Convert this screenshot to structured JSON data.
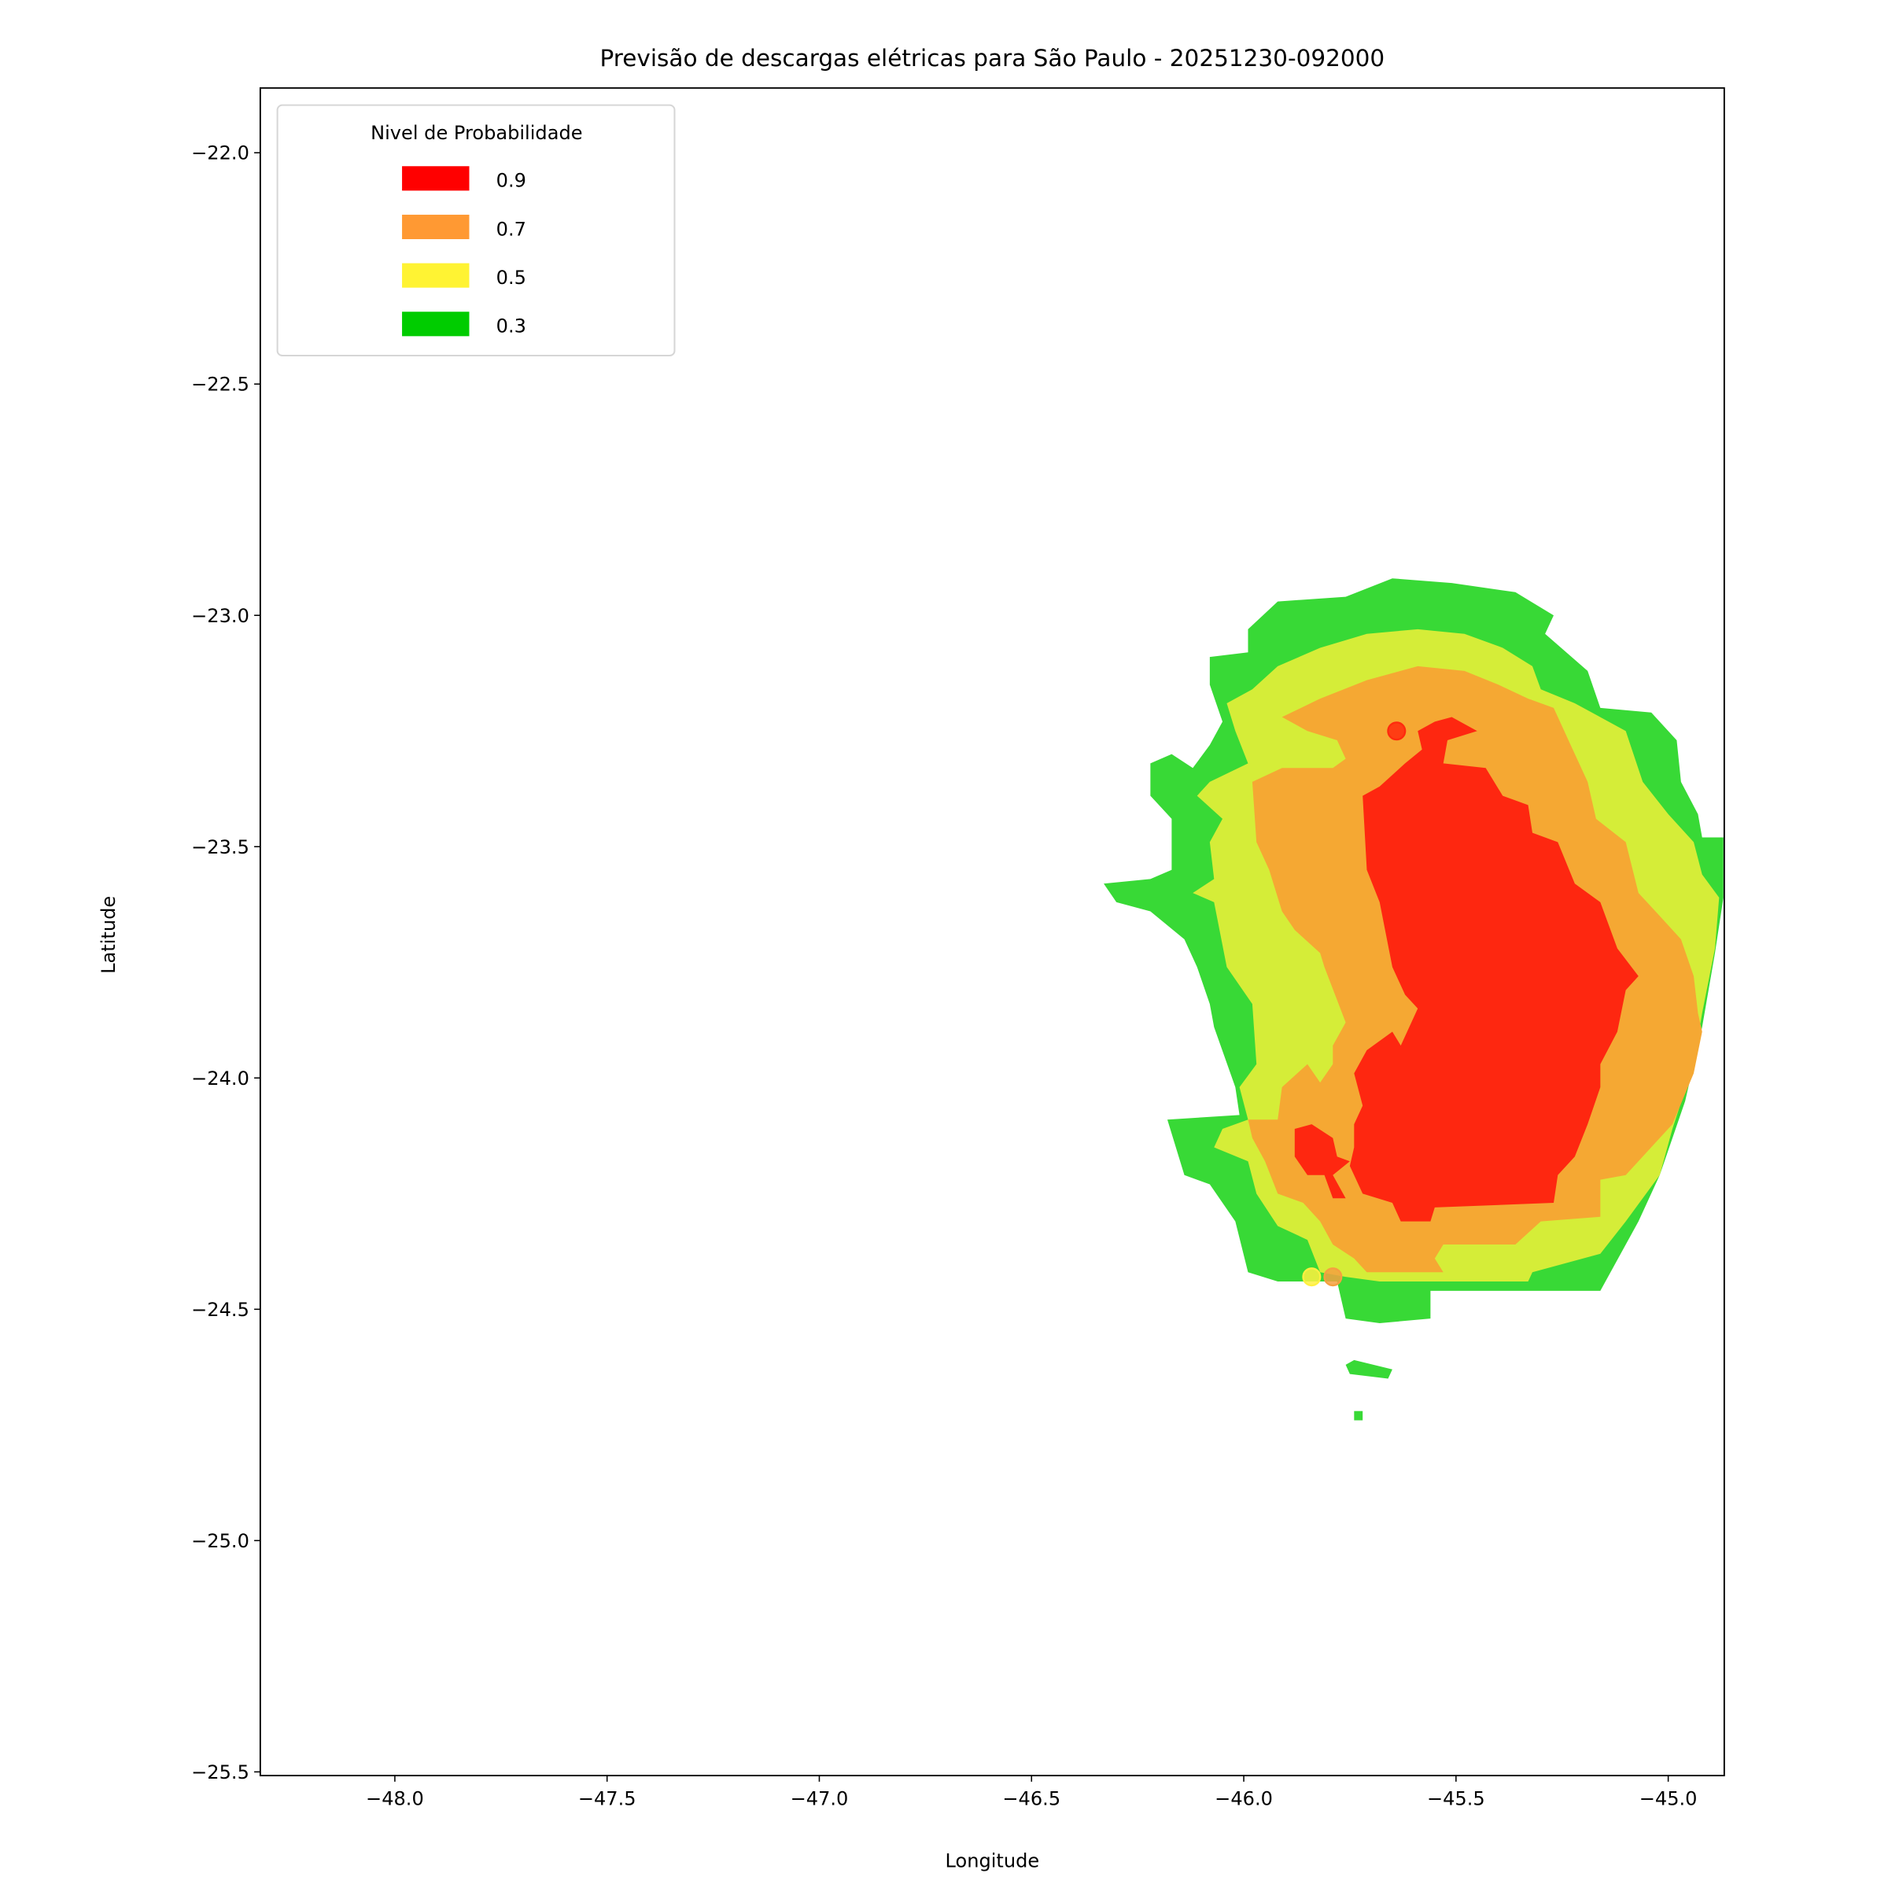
{
  "chart_data": {
    "type": "contour",
    "title": "Previsão de descargas elétricas para São Paulo - 20251230-092000",
    "xlabel": "Longitude",
    "ylabel": "Latitude",
    "xlim": [
      -48.317,
      -44.868
    ],
    "ylim": [
      -25.508,
      -21.86
    ],
    "grid": false,
    "xticks": [
      -48.0,
      -47.5,
      -47.0,
      -46.5,
      -46.0,
      -45.5,
      -45.0
    ],
    "xtick_labels": [
      "−48.0",
      "−47.5",
      "−47.0",
      "−46.5",
      "−46.0",
      "−45.5",
      "−45.0"
    ],
    "yticks": [
      -22.0,
      -22.5,
      -23.0,
      -23.5,
      -24.0,
      -24.5,
      -25.0,
      -25.5
    ],
    "ytick_labels": [
      "−22.0",
      "−22.5",
      "−23.0",
      "−23.5",
      "−24.0",
      "−24.5",
      "−25.0",
      "−25.5"
    ],
    "legend": {
      "title": "Nivel de Probabilidade",
      "placement": "upper-left",
      "entries": [
        {
          "label": "0.9",
          "color": "#ff0000"
        },
        {
          "label": "0.7",
          "color": "#ff9933"
        },
        {
          "label": "0.5",
          "color": "#fff333"
        },
        {
          "label": "0.3",
          "color": "#00cc00"
        }
      ]
    },
    "levels": [
      {
        "level": 0.3,
        "fill": "#38d936",
        "polygons": [
          [
            [
              -45.92,
              -22.97
            ],
            [
              -45.76,
              -22.96
            ],
            [
              -45.65,
              -22.92
            ],
            [
              -45.51,
              -22.93
            ],
            [
              -45.36,
              -22.95
            ],
            [
              -45.27,
              -23.0
            ],
            [
              -45.29,
              -23.04
            ],
            [
              -45.19,
              -23.12
            ],
            [
              -45.16,
              -23.2
            ],
            [
              -45.04,
              -23.21
            ],
            [
              -44.98,
              -23.27
            ],
            [
              -44.97,
              -23.36
            ],
            [
              -44.93,
              -23.43
            ],
            [
              -44.92,
              -23.48
            ],
            [
              -44.87,
              -23.48
            ],
            [
              -44.87,
              -23.61
            ],
            [
              -44.89,
              -23.73
            ],
            [
              -44.92,
              -23.89
            ],
            [
              -44.96,
              -24.05
            ],
            [
              -45.02,
              -24.21
            ],
            [
              -45.07,
              -24.31
            ],
            [
              -45.16,
              -24.46
            ],
            [
              -45.56,
              -24.46
            ],
            [
              -45.56,
              -24.52
            ],
            [
              -45.68,
              -24.53
            ],
            [
              -45.76,
              -24.52
            ],
            [
              -45.78,
              -24.44
            ],
            [
              -45.92,
              -24.44
            ],
            [
              -45.99,
              -24.42
            ],
            [
              -46.02,
              -24.31
            ],
            [
              -46.08,
              -24.23
            ],
            [
              -46.14,
              -24.21
            ],
            [
              -46.18,
              -24.09
            ],
            [
              -46.01,
              -24.08
            ],
            [
              -46.02,
              -24.02
            ],
            [
              -46.07,
              -23.89
            ],
            [
              -46.08,
              -23.84
            ],
            [
              -46.11,
              -23.76
            ],
            [
              -46.14,
              -23.7
            ],
            [
              -46.22,
              -23.64
            ],
            [
              -46.3,
              -23.62
            ],
            [
              -46.33,
              -23.58
            ],
            [
              -46.22,
              -23.57
            ],
            [
              -46.17,
              -23.55
            ],
            [
              -46.17,
              -23.44
            ],
            [
              -46.22,
              -23.39
            ],
            [
              -46.22,
              -23.32
            ],
            [
              -46.17,
              -23.3
            ],
            [
              -46.12,
              -23.33
            ],
            [
              -46.08,
              -23.28
            ],
            [
              -46.05,
              -23.23
            ],
            [
              -46.08,
              -23.15
            ],
            [
              -46.08,
              -23.09
            ],
            [
              -45.99,
              -23.08
            ],
            [
              -45.99,
              -23.03
            ]
          ],
          [
            [
              -45.76,
              -24.62
            ],
            [
              -45.74,
              -24.61
            ],
            [
              -45.65,
              -24.63
            ],
            [
              -45.66,
              -24.65
            ],
            [
              -45.75,
              -24.64
            ]
          ],
          [
            [
              -45.74,
              -24.72
            ],
            [
              -45.72,
              -24.72
            ],
            [
              -45.72,
              -24.74
            ],
            [
              -45.74,
              -24.74
            ]
          ]
        ]
      },
      {
        "level": 0.5,
        "fill": "#d5ed38",
        "polygons": [
          [
            [
              -45.92,
              -23.11
            ],
            [
              -45.82,
              -23.07
            ],
            [
              -45.71,
              -23.04
            ],
            [
              -45.59,
              -23.03
            ],
            [
              -45.48,
              -23.04
            ],
            [
              -45.39,
              -23.07
            ],
            [
              -45.32,
              -23.11
            ],
            [
              -45.3,
              -23.16
            ],
            [
              -45.22,
              -23.19
            ],
            [
              -45.1,
              -23.25
            ],
            [
              -45.06,
              -23.36
            ],
            [
              -45.0,
              -23.43
            ],
            [
              -44.94,
              -23.49
            ],
            [
              -44.92,
              -23.56
            ],
            [
              -44.88,
              -23.61
            ],
            [
              -44.89,
              -23.72
            ],
            [
              -44.92,
              -23.86
            ],
            [
              -44.94,
              -23.97
            ],
            [
              -44.99,
              -24.11
            ],
            [
              -45.02,
              -24.21
            ],
            [
              -45.1,
              -24.31
            ],
            [
              -45.16,
              -24.38
            ],
            [
              -45.32,
              -24.42
            ],
            [
              -45.33,
              -24.44
            ],
            [
              -45.53,
              -24.44
            ],
            [
              -45.68,
              -24.44
            ],
            [
              -45.76,
              -24.43
            ],
            [
              -45.82,
              -24.42
            ],
            [
              -45.85,
              -24.35
            ],
            [
              -45.92,
              -24.32
            ],
            [
              -45.97,
              -24.25
            ],
            [
              -45.99,
              -24.18
            ],
            [
              -46.07,
              -24.15
            ],
            [
              -46.05,
              -24.11
            ],
            [
              -45.99,
              -24.09
            ],
            [
              -46.01,
              -24.02
            ],
            [
              -45.97,
              -23.97
            ],
            [
              -45.98,
              -23.84
            ],
            [
              -46.04,
              -23.76
            ],
            [
              -46.07,
              -23.62
            ],
            [
              -46.12,
              -23.6
            ],
            [
              -46.07,
              -23.57
            ],
            [
              -46.08,
              -23.49
            ],
            [
              -46.05,
              -23.44
            ],
            [
              -46.11,
              -23.39
            ],
            [
              -46.08,
              -23.36
            ],
            [
              -45.99,
              -23.32
            ],
            [
              -46.02,
              -23.25
            ],
            [
              -46.04,
              -23.19
            ],
            [
              -45.98,
              -23.16
            ]
          ]
        ]
      },
      {
        "level": 0.7,
        "fill": "#f5a833",
        "polygons": [
          [
            [
              -45.82,
              -23.18
            ],
            [
              -45.71,
              -23.14
            ],
            [
              -45.59,
              -23.11
            ],
            [
              -45.48,
              -23.12
            ],
            [
              -45.4,
              -23.15
            ],
            [
              -45.33,
              -23.18
            ],
            [
              -45.27,
              -23.2
            ],
            [
              -45.23,
              -23.28
            ],
            [
              -45.19,
              -23.36
            ],
            [
              -45.17,
              -23.44
            ],
            [
              -45.1,
              -23.49
            ],
            [
              -45.07,
              -23.6
            ],
            [
              -45.02,
              -23.65
            ],
            [
              -44.97,
              -23.7
            ],
            [
              -44.94,
              -23.78
            ],
            [
              -44.93,
              -23.86
            ],
            [
              -44.92,
              -23.9
            ],
            [
              -44.94,
              -23.99
            ],
            [
              -44.99,
              -24.1
            ],
            [
              -45.02,
              -24.13
            ],
            [
              -45.1,
              -24.21
            ],
            [
              -45.16,
              -24.22
            ],
            [
              -45.16,
              -24.3
            ],
            [
              -45.3,
              -24.31
            ],
            [
              -45.36,
              -24.36
            ],
            [
              -45.53,
              -24.36
            ],
            [
              -45.55,
              -24.39
            ],
            [
              -45.53,
              -24.42
            ],
            [
              -45.71,
              -24.42
            ],
            [
              -45.74,
              -24.39
            ],
            [
              -45.79,
              -24.36
            ],
            [
              -45.82,
              -24.31
            ],
            [
              -45.86,
              -24.27
            ],
            [
              -45.92,
              -24.25
            ],
            [
              -45.95,
              -24.18
            ],
            [
              -45.98,
              -24.13
            ],
            [
              -45.99,
              -24.09
            ],
            [
              -45.92,
              -24.09
            ],
            [
              -45.91,
              -24.02
            ],
            [
              -45.85,
              -23.97
            ],
            [
              -45.82,
              -24.01
            ],
            [
              -45.79,
              -23.97
            ],
            [
              -45.79,
              -23.93
            ],
            [
              -45.76,
              -23.88
            ],
            [
              -45.81,
              -23.76
            ],
            [
              -45.82,
              -23.73
            ],
            [
              -45.88,
              -23.68
            ],
            [
              -45.91,
              -23.64
            ],
            [
              -45.94,
              -23.55
            ],
            [
              -45.97,
              -23.49
            ],
            [
              -45.98,
              -23.36
            ],
            [
              -45.91,
              -23.33
            ],
            [
              -45.79,
              -23.33
            ],
            [
              -45.76,
              -23.31
            ],
            [
              -45.78,
              -23.27
            ],
            [
              -45.85,
              -23.25
            ],
            [
              -45.91,
              -23.22
            ]
          ]
        ]
      },
      {
        "level": 0.9,
        "fill": "#fe2710",
        "polygons": [
          [
            [
              -45.55,
              -23.23
            ],
            [
              -45.51,
              -23.22
            ],
            [
              -45.45,
              -23.25
            ],
            [
              -45.52,
              -23.27
            ],
            [
              -45.53,
              -23.32
            ],
            [
              -45.43,
              -23.33
            ],
            [
              -45.39,
              -23.39
            ],
            [
              -45.33,
              -23.41
            ],
            [
              -45.32,
              -23.47
            ],
            [
              -45.26,
              -23.49
            ],
            [
              -45.22,
              -23.58
            ],
            [
              -45.16,
              -23.62
            ],
            [
              -45.12,
              -23.72
            ],
            [
              -45.07,
              -23.78
            ],
            [
              -45.1,
              -23.81
            ],
            [
              -45.12,
              -23.9
            ],
            [
              -45.16,
              -23.97
            ],
            [
              -45.16,
              -24.02
            ],
            [
              -45.19,
              -24.1
            ],
            [
              -45.22,
              -24.17
            ],
            [
              -45.26,
              -24.21
            ],
            [
              -45.27,
              -24.27
            ],
            [
              -45.55,
              -24.28
            ],
            [
              -45.56,
              -24.31
            ],
            [
              -45.63,
              -24.31
            ],
            [
              -45.65,
              -24.27
            ],
            [
              -45.72,
              -24.25
            ],
            [
              -45.75,
              -24.19
            ],
            [
              -45.74,
              -24.15
            ],
            [
              -45.74,
              -24.1
            ],
            [
              -45.72,
              -24.06
            ],
            [
              -45.74,
              -23.99
            ],
            [
              -45.71,
              -23.94
            ],
            [
              -45.65,
              -23.9
            ],
            [
              -45.63,
              -23.93
            ],
            [
              -45.59,
              -23.85
            ],
            [
              -45.62,
              -23.82
            ],
            [
              -45.65,
              -23.76
            ],
            [
              -45.68,
              -23.62
            ],
            [
              -45.71,
              -23.55
            ],
            [
              -45.72,
              -23.39
            ],
            [
              -45.68,
              -23.37
            ],
            [
              -45.62,
              -23.32
            ],
            [
              -45.58,
              -23.29
            ],
            [
              -45.59,
              -23.25
            ]
          ],
          [
            [
              -45.88,
              -24.11
            ],
            [
              -45.84,
              -24.1
            ],
            [
              -45.79,
              -24.13
            ],
            [
              -45.78,
              -24.17
            ],
            [
              -45.75,
              -24.18
            ],
            [
              -45.79,
              -24.21
            ],
            [
              -45.76,
              -24.26
            ],
            [
              -45.79,
              -24.26
            ],
            [
              -45.81,
              -24.21
            ],
            [
              -45.85,
              -24.21
            ],
            [
              -45.88,
              -24.17
            ]
          ]
        ]
      }
    ],
    "points": [
      {
        "lon": -45.64,
        "lat": -23.25,
        "level": 0.9,
        "color": "#ff2a0e"
      },
      {
        "lon": -45.84,
        "lat": -24.43,
        "level": 0.5,
        "color": "#fff040"
      },
      {
        "lon": -45.79,
        "lat": -24.43,
        "level": 0.7,
        "color": "#f5a040"
      }
    ]
  }
}
